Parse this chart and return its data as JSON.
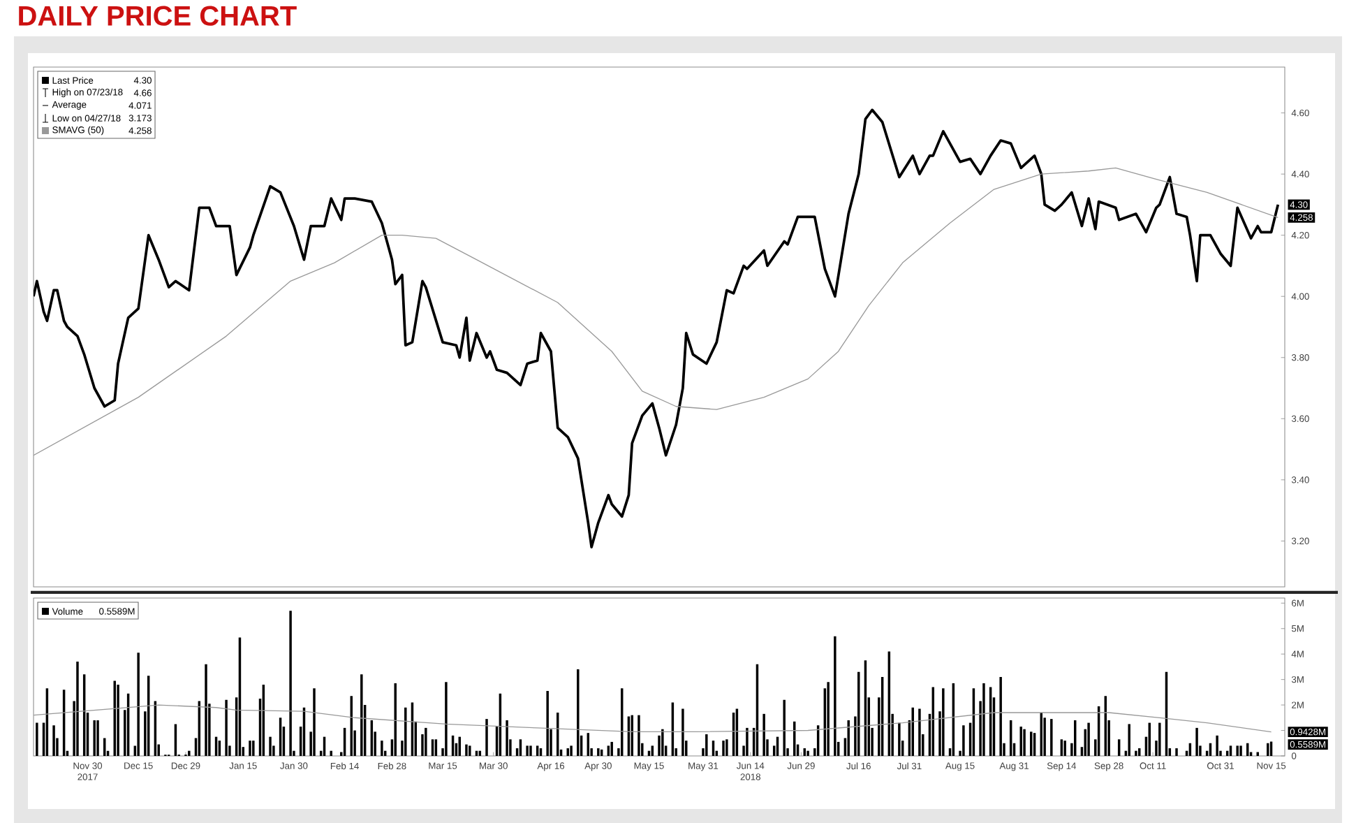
{
  "chart_data": [
    {
      "type": "line",
      "title": "DAILY PRICE CHART",
      "legend": "top left",
      "xlim": [
        "2017-11-14",
        "2018-11-19"
      ],
      "ylim": [
        3.05,
        4.75
      ],
      "yticks": [
        {
          "value": 3.2,
          "label": "3.20"
        },
        {
          "value": 3.4,
          "label": "3.40"
        },
        {
          "value": 3.6,
          "label": "3.60"
        },
        {
          "value": 3.8,
          "label": "3.80"
        },
        {
          "value": 4.0,
          "label": "4.00"
        },
        {
          "value": 4.2,
          "label": "4.20"
        },
        {
          "value": 4.4,
          "label": "4.40"
        },
        {
          "value": 4.6,
          "label": "4.60"
        }
      ],
      "annotations": [
        "4.30",
        "High on 07/23/18",
        "4.66",
        "Average",
        "4.071",
        "Low on 04/27/18",
        "3.173",
        "4.258",
        "4.30",
        "4.258"
      ],
      "series": [
        {
          "name": "Last Price",
          "color": "#000000",
          "x": [
            "2017-11-14",
            "2017-11-15",
            "2017-11-17",
            "2017-11-18",
            "2017-11-20",
            "2017-11-21",
            "2017-11-23",
            "2017-11-24",
            "2017-11-27",
            "2017-11-29",
            "2017-12-02",
            "2017-12-05",
            "2017-12-08",
            "2017-12-09",
            "2017-12-12",
            "2017-12-15",
            "2017-12-18",
            "2017-12-21",
            "2017-12-24",
            "2017-12-26",
            "2017-12-30",
            "2018-01-02",
            "2018-01-05",
            "2018-01-07",
            "2018-01-11",
            "2018-01-13",
            "2018-01-17",
            "2018-01-18",
            "2018-01-23",
            "2018-01-26",
            "2018-01-30",
            "2018-02-02",
            "2018-02-04",
            "2018-02-08",
            "2018-02-10",
            "2018-02-13",
            "2018-02-14",
            "2018-02-17",
            "2018-02-22",
            "2018-02-25",
            "2018-02-28",
            "2018-03-01",
            "2018-03-03",
            "2018-03-04",
            "2018-03-06",
            "2018-03-09",
            "2018-03-10",
            "2018-03-15",
            "2018-03-19",
            "2018-03-20",
            "2018-03-22",
            "2018-03-23",
            "2018-03-25",
            "2018-03-28",
            "2018-03-29",
            "2018-03-31",
            "2018-04-03",
            "2018-04-07",
            "2018-04-09",
            "2018-04-12",
            "2018-04-13",
            "2018-04-16",
            "2018-04-18",
            "2018-04-21",
            "2018-04-24",
            "2018-04-27",
            "2018-04-28",
            "2018-04-30",
            "2018-05-03",
            "2018-05-04",
            "2018-05-07",
            "2018-05-09",
            "2018-05-10",
            "2018-05-13",
            "2018-05-16",
            "2018-05-18",
            "2018-05-20",
            "2018-05-23",
            "2018-05-25",
            "2018-05-26",
            "2018-05-28",
            "2018-06-01",
            "2018-06-04",
            "2018-06-07",
            "2018-06-09",
            "2018-06-12",
            "2018-06-13",
            "2018-06-18",
            "2018-06-19",
            "2018-06-24",
            "2018-06-25",
            "2018-06-28",
            "2018-07-03",
            "2018-07-06",
            "2018-07-09",
            "2018-07-13",
            "2018-07-16",
            "2018-07-18",
            "2018-07-20",
            "2018-07-23",
            "2018-07-28",
            "2018-08-01",
            "2018-08-03",
            "2018-08-06",
            "2018-08-07",
            "2018-08-10",
            "2018-08-15",
            "2018-08-18",
            "2018-08-21",
            "2018-08-24",
            "2018-08-27",
            "2018-08-30",
            "2018-09-02",
            "2018-09-06",
            "2018-09-08",
            "2018-09-09",
            "2018-09-12",
            "2018-09-14",
            "2018-09-17",
            "2018-09-20",
            "2018-09-22",
            "2018-09-24",
            "2018-09-25",
            "2018-09-30",
            "2018-10-01",
            "2018-10-06",
            "2018-10-09",
            "2018-10-12",
            "2018-10-13",
            "2018-10-16",
            "2018-10-18",
            "2018-10-21",
            "2018-10-22",
            "2018-10-24",
            "2018-10-25",
            "2018-10-28",
            "2018-10-31",
            "2018-11-03",
            "2018-11-05",
            "2018-11-09",
            "2018-11-11",
            "2018-11-12",
            "2018-11-15",
            "2018-11-17"
          ],
          "values": [
            4.0,
            4.05,
            3.95,
            3.92,
            4.02,
            4.02,
            3.92,
            3.9,
            3.87,
            3.81,
            3.7,
            3.64,
            3.66,
            3.78,
            3.93,
            3.96,
            4.2,
            4.12,
            4.03,
            4.05,
            4.02,
            4.29,
            4.29,
            4.23,
            4.23,
            4.07,
            4.16,
            4.2,
            4.36,
            4.34,
            4.23,
            4.12,
            4.23,
            4.23,
            4.32,
            4.25,
            4.32,
            4.32,
            4.31,
            4.24,
            4.12,
            4.04,
            4.07,
            3.84,
            3.85,
            4.05,
            4.03,
            3.85,
            3.84,
            3.8,
            3.93,
            3.79,
            3.88,
            3.8,
            3.82,
            3.76,
            3.75,
            3.71,
            3.78,
            3.79,
            3.88,
            3.82,
            3.57,
            3.54,
            3.47,
            3.26,
            3.18,
            3.26,
            3.35,
            3.32,
            3.28,
            3.35,
            3.52,
            3.61,
            3.65,
            3.57,
            3.48,
            3.58,
            3.7,
            3.88,
            3.81,
            3.78,
            3.85,
            4.02,
            4.01,
            4.1,
            4.09,
            4.15,
            4.1,
            4.18,
            4.17,
            4.26,
            4.26,
            4.09,
            4.0,
            4.27,
            4.4,
            4.58,
            4.61,
            4.57,
            4.39,
            4.46,
            4.4,
            4.46,
            4.46,
            4.54,
            4.44,
            4.45,
            4.4,
            4.46,
            4.51,
            4.5,
            4.42,
            4.46,
            4.4,
            4.3,
            4.28,
            4.3,
            4.34,
            4.23,
            4.32,
            4.22,
            4.31,
            4.29,
            4.25,
            4.27,
            4.21,
            4.29,
            4.3,
            4.39,
            4.27,
            4.26,
            4.2,
            4.05,
            4.2,
            4.2,
            4.14,
            4.1,
            4.29,
            4.19,
            4.23,
            4.21,
            4.21,
            4.3
          ]
        },
        {
          "name": "SMAVG (50)",
          "color": "#999999",
          "x": [
            "2017-11-14",
            "2017-12-15",
            "2018-01-10",
            "2018-01-29",
            "2018-02-11",
            "2018-02-25",
            "2018-03-03",
            "2018-03-13",
            "2018-03-25",
            "2018-04-06",
            "2018-04-18",
            "2018-05-04",
            "2018-05-13",
            "2018-05-23",
            "2018-06-04",
            "2018-06-18",
            "2018-07-01",
            "2018-07-10",
            "2018-07-19",
            "2018-07-29",
            "2018-08-12",
            "2018-08-25",
            "2018-09-08",
            "2018-09-22",
            "2018-09-30",
            "2018-10-13",
            "2018-10-27",
            "2018-11-17"
          ],
          "values": [
            3.48,
            3.67,
            3.87,
            4.05,
            4.11,
            4.2,
            4.2,
            4.19,
            4.12,
            4.05,
            3.98,
            3.82,
            3.69,
            3.64,
            3.63,
            3.67,
            3.73,
            3.82,
            3.97,
            4.11,
            4.24,
            4.35,
            4.4,
            4.41,
            4.42,
            4.38,
            4.34,
            4.258
          ]
        }
      ]
    },
    {
      "type": "bar",
      "legend": "top left",
      "xlim": [
        "2017-11-14",
        "2018-11-19"
      ],
      "ylim": [
        0,
        6.2
      ],
      "xticks": [
        {
          "value": "2017-11-30",
          "label": "Nov 30"
        },
        {
          "value": "2017-12-15",
          "label": "Dec 15"
        },
        {
          "value": "2017-12-29",
          "label": "Dec 29"
        },
        {
          "value": "2018-01-15",
          "label": "Jan 15"
        },
        {
          "value": "2018-01-30",
          "label": "Jan 30"
        },
        {
          "value": "2018-02-14",
          "label": "Feb 14"
        },
        {
          "value": "2018-02-28",
          "label": "Feb 28"
        },
        {
          "value": "2018-03-15",
          "label": "Mar 15"
        },
        {
          "value": "2018-03-30",
          "label": "Mar 30"
        },
        {
          "value": "2018-04-16",
          "label": "Apr 16"
        },
        {
          "value": "2018-04-30",
          "label": "Apr 30"
        },
        {
          "value": "2018-05-15",
          "label": "May 15"
        },
        {
          "value": "2018-05-31",
          "label": "May 31"
        },
        {
          "value": "2018-06-14",
          "label": "Jun 14"
        },
        {
          "value": "2018-06-29",
          "label": "Jun 29"
        },
        {
          "value": "2018-07-16",
          "label": "Jul 16"
        },
        {
          "value": "2018-07-31",
          "label": "Jul 31"
        },
        {
          "value": "2018-08-15",
          "label": "Aug 15"
        },
        {
          "value": "2018-08-31",
          "label": "Aug 31"
        },
        {
          "value": "2018-09-14",
          "label": "Sep 14"
        },
        {
          "value": "2018-09-28",
          "label": "Sep 28"
        },
        {
          "value": "2018-10-11",
          "label": "Oct 11"
        },
        {
          "value": "2018-10-31",
          "label": "Oct 31"
        },
        {
          "value": "2018-11-15",
          "label": "Nov 15"
        }
      ],
      "yticks": [
        0,
        {
          "value": 1,
          "label": null
        },
        {
          "value": 2,
          "label": "2M"
        },
        {
          "value": 3,
          "label": "3M"
        },
        {
          "value": 4,
          "label": "4M"
        },
        {
          "value": 5,
          "label": "5M"
        },
        {
          "value": 6,
          "label": "6M"
        }
      ],
      "annotations": [
        "0.5589M",
        "0.9428M",
        "0.5589M",
        "2017",
        "2018"
      ],
      "series": [
        {
          "name": "Volume",
          "color": "#000000",
          "x": [
            "2017-11-15",
            "2017-11-17",
            "2017-11-18",
            "2017-11-20",
            "2017-11-21",
            "2017-11-23",
            "2017-11-24",
            "2017-11-26",
            "2017-11-27",
            "2017-11-29",
            "2017-11-30",
            "2017-12-02",
            "2017-12-03",
            "2017-12-05",
            "2017-12-06",
            "2017-12-08",
            "2017-12-09",
            "2017-12-11",
            "2017-12-12",
            "2017-12-14",
            "2017-12-15",
            "2017-12-17",
            "2017-12-18",
            "2017-12-20",
            "2017-12-21",
            "2017-12-23",
            "2017-12-24",
            "2017-12-26",
            "2017-12-27",
            "2017-12-29",
            "2017-12-30",
            "2018-01-01",
            "2018-01-02",
            "2018-01-04",
            "2018-01-05",
            "2018-01-07",
            "2018-01-08",
            "2018-01-10",
            "2018-01-11",
            "2018-01-13",
            "2018-01-14",
            "2018-01-15",
            "2018-01-17",
            "2018-01-18",
            "2018-01-20",
            "2018-01-21",
            "2018-01-23",
            "2018-01-24",
            "2018-01-26",
            "2018-01-27",
            "2018-01-29",
            "2018-01-30",
            "2018-02-01",
            "2018-02-02",
            "2018-02-04",
            "2018-02-05",
            "2018-02-07",
            "2018-02-08",
            "2018-02-10",
            "2018-02-13",
            "2018-02-14",
            "2018-02-16",
            "2018-02-17",
            "2018-02-19",
            "2018-02-20",
            "2018-02-22",
            "2018-02-23",
            "2018-02-25",
            "2018-02-26",
            "2018-02-28",
            "2018-03-01",
            "2018-03-03",
            "2018-03-04",
            "2018-03-06",
            "2018-03-07",
            "2018-03-09",
            "2018-03-10",
            "2018-03-12",
            "2018-03-13",
            "2018-03-15",
            "2018-03-16",
            "2018-03-18",
            "2018-03-19",
            "2018-03-20",
            "2018-03-22",
            "2018-03-23",
            "2018-03-25",
            "2018-03-26",
            "2018-03-28",
            "2018-03-31",
            "2018-04-01",
            "2018-04-03",
            "2018-04-04",
            "2018-04-06",
            "2018-04-07",
            "2018-04-09",
            "2018-04-10",
            "2018-04-12",
            "2018-04-13",
            "2018-04-15",
            "2018-04-16",
            "2018-04-18",
            "2018-04-19",
            "2018-04-21",
            "2018-04-22",
            "2018-04-24",
            "2018-04-25",
            "2018-04-27",
            "2018-04-28",
            "2018-04-30",
            "2018-05-01",
            "2018-05-03",
            "2018-05-04",
            "2018-05-06",
            "2018-05-07",
            "2018-05-09",
            "2018-05-10",
            "2018-05-12",
            "2018-05-13",
            "2018-05-15",
            "2018-05-16",
            "2018-05-18",
            "2018-05-19",
            "2018-05-20",
            "2018-05-22",
            "2018-05-23",
            "2018-05-25",
            "2018-05-26",
            "2018-05-31",
            "2018-06-01",
            "2018-06-03",
            "2018-06-04",
            "2018-06-06",
            "2018-06-07",
            "2018-06-09",
            "2018-06-10",
            "2018-06-12",
            "2018-06-13",
            "2018-06-15",
            "2018-06-16",
            "2018-06-18",
            "2018-06-19",
            "2018-06-21",
            "2018-06-22",
            "2018-06-24",
            "2018-06-25",
            "2018-06-27",
            "2018-06-28",
            "2018-06-30",
            "2018-07-01",
            "2018-07-03",
            "2018-07-04",
            "2018-07-06",
            "2018-07-07",
            "2018-07-09",
            "2018-07-10",
            "2018-07-12",
            "2018-07-13",
            "2018-07-15",
            "2018-07-16",
            "2018-07-18",
            "2018-07-19",
            "2018-07-20",
            "2018-07-22",
            "2018-07-23",
            "2018-07-25",
            "2018-07-26",
            "2018-07-28",
            "2018-07-29",
            "2018-07-31",
            "2018-08-01",
            "2018-08-03",
            "2018-08-04",
            "2018-08-06",
            "2018-08-07",
            "2018-08-09",
            "2018-08-10",
            "2018-08-12",
            "2018-08-13",
            "2018-08-15",
            "2018-08-16",
            "2018-08-18",
            "2018-08-19",
            "2018-08-21",
            "2018-08-22",
            "2018-08-24",
            "2018-08-25",
            "2018-08-27",
            "2018-08-28",
            "2018-08-30",
            "2018-08-31",
            "2018-09-02",
            "2018-09-03",
            "2018-09-05",
            "2018-09-06",
            "2018-09-08",
            "2018-09-09",
            "2018-09-11",
            "2018-09-14",
            "2018-09-15",
            "2018-09-17",
            "2018-09-18",
            "2018-09-20",
            "2018-09-21",
            "2018-09-22",
            "2018-09-24",
            "2018-09-25",
            "2018-09-27",
            "2018-09-28",
            "2018-10-01",
            "2018-10-03",
            "2018-10-04",
            "2018-10-06",
            "2018-10-07",
            "2018-10-09",
            "2018-10-10",
            "2018-10-12",
            "2018-10-13",
            "2018-10-15",
            "2018-10-16",
            "2018-10-18",
            "2018-10-21",
            "2018-10-22",
            "2018-10-24",
            "2018-10-25",
            "2018-10-27",
            "2018-10-28",
            "2018-10-30",
            "2018-10-31",
            "2018-11-02",
            "2018-11-03",
            "2018-11-05",
            "2018-11-06",
            "2018-11-08",
            "2018-11-09",
            "2018-11-11",
            "2018-11-14",
            "2018-11-15"
          ],
          "values": [
            1.3,
            1.3,
            2.65,
            1.2,
            0.7,
            2.6,
            0.2,
            2.15,
            3.7,
            3.2,
            1.7,
            1.4,
            1.4,
            0.7,
            0.2,
            2.95,
            2.8,
            1.8,
            2.45,
            0.4,
            4.05,
            1.75,
            3.15,
            2.15,
            0.45,
            0.05,
            0.05,
            1.25,
            0.05,
            0.05,
            0.2,
            0.7,
            2.15,
            3.6,
            2.05,
            0.75,
            0.6,
            2.2,
            0.4,
            2.3,
            4.65,
            0.35,
            0.6,
            0.6,
            2.25,
            2.8,
            0.75,
            0.4,
            1.5,
            1.15,
            5.7,
            0.2,
            1.15,
            1.9,
            0.95,
            2.65,
            0.2,
            0.75,
            0.2,
            0.15,
            1.1,
            2.35,
            1.0,
            3.2,
            2.0,
            1.4,
            0.95,
            0.6,
            0.2,
            0.65,
            2.85,
            0.6,
            1.9,
            2.1,
            1.35,
            0.85,
            1.1,
            0.65,
            0.65,
            0.3,
            2.9,
            0.8,
            0.5,
            0.75,
            0.45,
            0.4,
            0.2,
            0.2,
            1.45,
            1.15,
            2.45,
            1.4,
            0.65,
            0.3,
            0.65,
            0.4,
            0.4,
            0.4,
            0.3,
            2.55,
            1.05,
            1.7,
            0.25,
            0.3,
            0.4,
            3.4,
            0.8,
            0.9,
            0.3,
            0.3,
            0.25,
            0.4,
            0.55,
            0.3,
            2.65,
            1.55,
            1.6,
            1.6,
            0.5,
            0.2,
            0.4,
            0.8,
            1.05,
            0.4,
            2.1,
            0.3,
            1.85,
            0.6,
            0.3,
            0.85,
            0.6,
            0.2,
            0.6,
            0.65,
            1.7,
            1.85,
            0.4,
            1.1,
            1.1,
            3.6,
            1.65,
            0.65,
            0.4,
            0.75,
            2.2,
            0.3,
            1.35,
            0.45,
            0.3,
            0.2,
            0.3,
            1.2,
            2.65,
            2.9,
            4.7,
            0.55,
            0.7,
            1.4,
            1.55,
            3.3,
            3.75,
            2.3,
            1.1,
            2.3,
            3.1,
            4.1,
            1.65,
            1.3,
            0.6,
            1.4,
            1.9,
            1.85,
            0.85,
            1.65,
            2.7,
            1.75,
            2.65,
            0.3,
            2.85,
            0.2,
            1.2,
            1.3,
            2.65,
            2.15,
            2.85,
            2.7,
            2.3,
            3.1,
            0.5,
            1.4,
            0.5,
            1.15,
            1.05,
            0.95,
            0.9,
            1.7,
            1.5,
            1.45,
            0.65,
            0.6,
            0.5,
            1.4,
            0.35,
            1.05,
            1.3,
            0.65,
            1.95,
            2.35,
            1.4,
            0.65,
            0.2,
            1.25,
            0.2,
            0.3,
            0.75,
            1.3,
            0.6,
            1.3,
            3.3,
            0.3,
            0.3,
            0.2,
            0.5,
            1.1,
            0.4,
            0.2,
            0.5,
            0.8,
            0.2,
            0.2,
            0.4,
            0.4,
            0.4,
            0.5,
            0.15,
            0.15,
            0.5,
            0.5589
          ]
        },
        {
          "type": "line",
          "color": "#999999",
          "x": [
            "2017-11-14",
            "2017-12-21",
            "2018-01-07",
            "2018-01-13",
            "2018-02-02",
            "2018-02-17",
            "2018-03-16",
            "2018-04-12",
            "2018-05-10",
            "2018-05-29",
            "2018-07-01",
            "2018-07-29",
            "2018-08-25",
            "2018-09-15",
            "2018-09-28",
            "2018-10-13",
            "2018-10-27",
            "2018-11-15"
          ],
          "values": [
            1.6,
            2.0,
            1.9,
            1.8,
            1.75,
            1.5,
            1.25,
            1.1,
            0.95,
            0.95,
            1.0,
            1.3,
            1.7,
            1.7,
            1.7,
            1.5,
            1.3,
            0.9428
          ]
        }
      ]
    }
  ]
}
